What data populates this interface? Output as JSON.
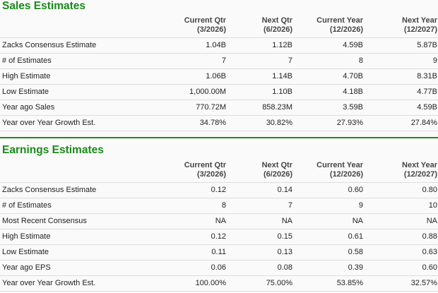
{
  "columns": [
    {
      "title": "Current Qtr",
      "period": "(3/2026)"
    },
    {
      "title": "Next Qtr",
      "period": "(6/2026)"
    },
    {
      "title": "Current Year",
      "period": "(12/2026)"
    },
    {
      "title": "Next Year",
      "period": "(12/2027)"
    }
  ],
  "sales": {
    "title": "Sales Estimates",
    "rows": [
      {
        "label": "Zacks Consensus Estimate",
        "values": [
          "1.04B",
          "1.12B",
          "4.59B",
          "5.87B"
        ]
      },
      {
        "label": "# of Estimates",
        "values": [
          "7",
          "7",
          "8",
          "9"
        ]
      },
      {
        "label": "High Estimate",
        "values": [
          "1.06B",
          "1.14B",
          "4.70B",
          "8.31B"
        ]
      },
      {
        "label": "Low Estimate",
        "values": [
          "1,000.00M",
          "1.10B",
          "4.18B",
          "4.77B"
        ]
      },
      {
        "label": "Year ago Sales",
        "values": [
          "770.72M",
          "858.23M",
          "3.59B",
          "4.59B"
        ]
      },
      {
        "label": "Year over Year Growth Est.",
        "values": [
          "34.78%",
          "30.82%",
          "27.93%",
          "27.84%"
        ]
      }
    ]
  },
  "earnings": {
    "title": "Earnings Estimates",
    "rows": [
      {
        "label": "Zacks Consensus Estimate",
        "values": [
          "0.12",
          "0.14",
          "0.60",
          "0.80"
        ]
      },
      {
        "label": "# of Estimates",
        "values": [
          "8",
          "7",
          "9",
          "10"
        ]
      },
      {
        "label": "Most Recent Consensus",
        "values": [
          "NA",
          "NA",
          "NA",
          "NA"
        ]
      },
      {
        "label": "High Estimate",
        "values": [
          "0.12",
          "0.15",
          "0.61",
          "0.88"
        ]
      },
      {
        "label": "Low Estimate",
        "values": [
          "0.11",
          "0.13",
          "0.58",
          "0.63"
        ]
      },
      {
        "label": "Year ago EPS",
        "values": [
          "0.06",
          "0.08",
          "0.39",
          "0.60"
        ]
      },
      {
        "label": "Year over Year Growth Est.",
        "values": [
          "100.00%",
          "75.00%",
          "53.85%",
          "32.57%"
        ]
      }
    ]
  },
  "colors": {
    "accent": "#1a8a1a",
    "divider": "#1f8a1f",
    "row_border": "#dddddd"
  }
}
